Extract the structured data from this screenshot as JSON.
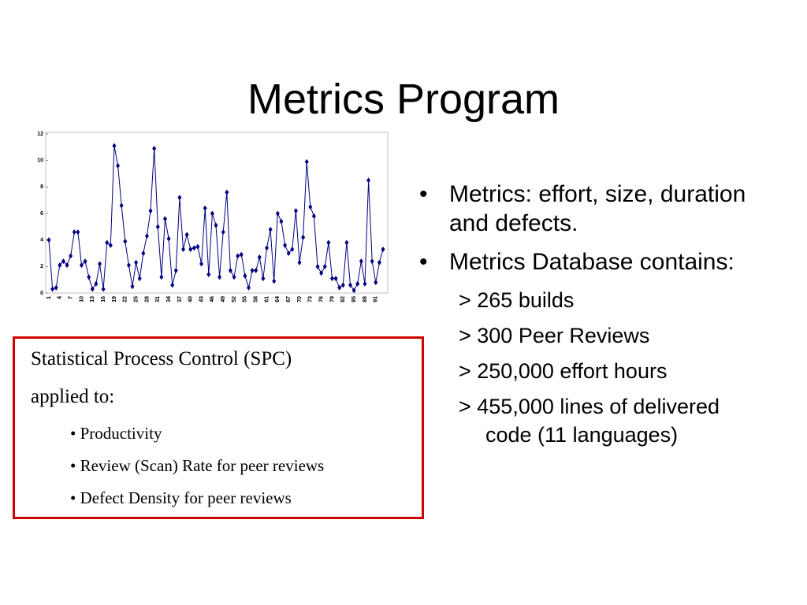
{
  "title": "Metrics Program",
  "chart_data": {
    "type": "line",
    "categories": [
      1,
      null,
      null,
      4,
      null,
      null,
      7,
      null,
      null,
      10,
      null,
      null,
      13,
      null,
      null,
      16,
      null,
      null,
      19,
      null,
      null,
      22,
      null,
      null,
      25,
      null,
      null,
      28,
      null,
      null,
      31,
      null,
      null,
      34,
      null,
      null,
      37,
      null,
      null,
      40,
      null,
      null,
      43,
      null,
      null,
      46,
      null,
      null,
      49,
      null,
      null,
      52,
      null,
      null,
      55,
      null,
      null,
      58,
      null,
      null,
      61,
      null,
      null,
      64,
      null,
      null,
      67,
      null,
      null,
      70,
      null,
      null,
      73,
      null,
      null,
      76,
      null,
      null,
      79,
      null,
      null,
      82,
      null,
      null,
      85,
      null,
      null,
      88,
      null,
      null,
      91,
      null,
      null
    ],
    "values": [
      4.0,
      0.3,
      0.4,
      2.1,
      2.4,
      2.1,
      2.8,
      4.6,
      4.6,
      2.1,
      2.4,
      1.2,
      0.3,
      0.7,
      2.2,
      0.3,
      3.8,
      3.6,
      11.1,
      9.6,
      6.6,
      3.9,
      2.1,
      0.5,
      2.3,
      1.1,
      3.0,
      4.3,
      6.2,
      10.9,
      5.0,
      1.2,
      5.6,
      4.1,
      0.6,
      1.7,
      7.2,
      3.3,
      4.4,
      3.3,
      3.4,
      3.5,
      2.2,
      6.4,
      1.4,
      6.0,
      5.1,
      1.2,
      4.6,
      7.6,
      1.7,
      1.2,
      2.8,
      2.9,
      1.3,
      0.4,
      1.7,
      1.7,
      2.7,
      1.1,
      3.4,
      4.8,
      0.9,
      6.0,
      5.4,
      3.6,
      3.0,
      3.3,
      6.2,
      2.3,
      4.2,
      9.9,
      6.5,
      5.8,
      2.0,
      1.5,
      2.0,
      3.8,
      1.1,
      1.1,
      0.4,
      0.6,
      3.8,
      0.6,
      0.2,
      0.7,
      2.4,
      0.7,
      8.5,
      2.4,
      0.8,
      2.3,
      3.3
    ],
    "color": "#000080",
    "ylim": [
      0,
      12
    ],
    "yticks": [
      0,
      2,
      4,
      6,
      8,
      10,
      12
    ]
  },
  "spc_box": {
    "heading": [
      "Statistical Process Control (SPC)",
      "applied to:"
    ],
    "items": [
      "Productivity",
      "Review (Scan) Rate for peer reviews",
      "Defect Density for peer reviews"
    ]
  },
  "bullets": [
    {
      "text": "Metrics: effort, size, duration and defects.",
      "items": []
    },
    {
      "text": "Metrics Database contains:",
      "items": [
        "> 265 builds",
        "> 300 Peer Reviews",
        "> 250,000 effort hours",
        "> 455,000 lines of delivered code (11 languages)"
      ]
    }
  ]
}
